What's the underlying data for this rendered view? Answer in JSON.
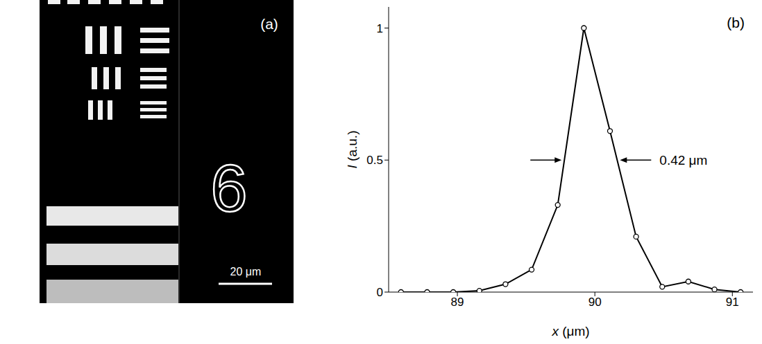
{
  "chart_data": {
    "type": "line",
    "panel_label": "(b)",
    "x_label": "x (μm)",
    "y_label": "I (a.u.)",
    "x": [
      88.59,
      88.78,
      88.97,
      89.16,
      89.35,
      89.54,
      89.73,
      89.92,
      90.11,
      90.3,
      90.49,
      90.68,
      90.87,
      91.06
    ],
    "values": [
      0,
      0,
      0,
      0.005,
      0.03,
      0.085,
      0.33,
      1.0,
      0.61,
      0.21,
      0.02,
      0.04,
      0.01,
      0
    ],
    "color": "#000000",
    "marker": "circle",
    "grid": false,
    "xlim": [
      88.5,
      91.15
    ],
    "xticks": [
      89,
      90,
      91
    ],
    "ylim": [
      0,
      1.08
    ],
    "yticks": [
      0,
      0.5,
      1
    ],
    "annotations": [
      "0.42 μm"
    ]
  },
  "image_panel": {
    "panel_label": "(a)",
    "texts": [
      "6"
    ],
    "scale_bar": "20 μm"
  }
}
